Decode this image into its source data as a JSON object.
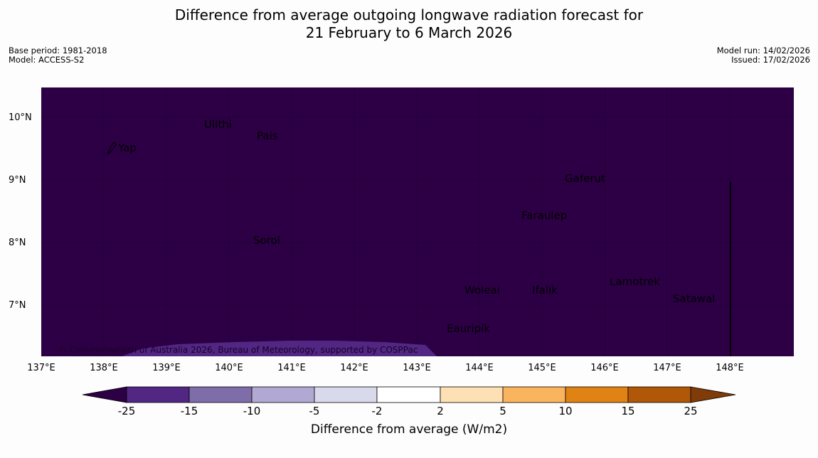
{
  "title_line1": "Difference from average outgoing longwave radiation forecast for",
  "title_line2": "21 February to 6 March 2026",
  "base_period": "Base period: 1981-2018",
  "model": "Model: ACCESS-S2",
  "model_run": "Model run: 14/02/2026",
  "issued": "Issued: 17/02/2026",
  "copyright": "© Commonwealth of Australia 2026, Bureau of Meteorology, supported by COSPPac",
  "map": {
    "lon_range": [
      137,
      149
    ],
    "lat_range": [
      6.2,
      10.5
    ],
    "background_color": "#2d0046",
    "anomaly_color": "#512783",
    "lat_ticks": [
      "10°N",
      "9°N",
      "8°N",
      "7°N"
    ],
    "lon_ticks": [
      "137°E",
      "138°E",
      "139°E",
      "140°E",
      "141°E",
      "142°E",
      "143°E",
      "144°E",
      "145°E",
      "146°E",
      "147°E",
      "148°E"
    ],
    "places": [
      "Yap",
      "Ulithi",
      "Pais",
      "Gaferut",
      "Faraulep",
      "Sorol",
      "Lamotrek",
      "Woleai",
      "Ifalik",
      "Satawal",
      "Eauripik"
    ]
  },
  "colorbar": {
    "title": "Difference from average (W/m2)",
    "ticks": [
      "-25",
      "-15",
      "-10",
      "-5",
      "-2",
      "2",
      "5",
      "10",
      "15",
      "25"
    ],
    "colors": [
      "#2d0046",
      "#512783",
      "#7f6daa",
      "#b1a9d3",
      "#d9d9ec",
      "#ffffff",
      "#fee0b5",
      "#fbb45e",
      "#e08214",
      "#b15808",
      "#7f3b08"
    ]
  }
}
